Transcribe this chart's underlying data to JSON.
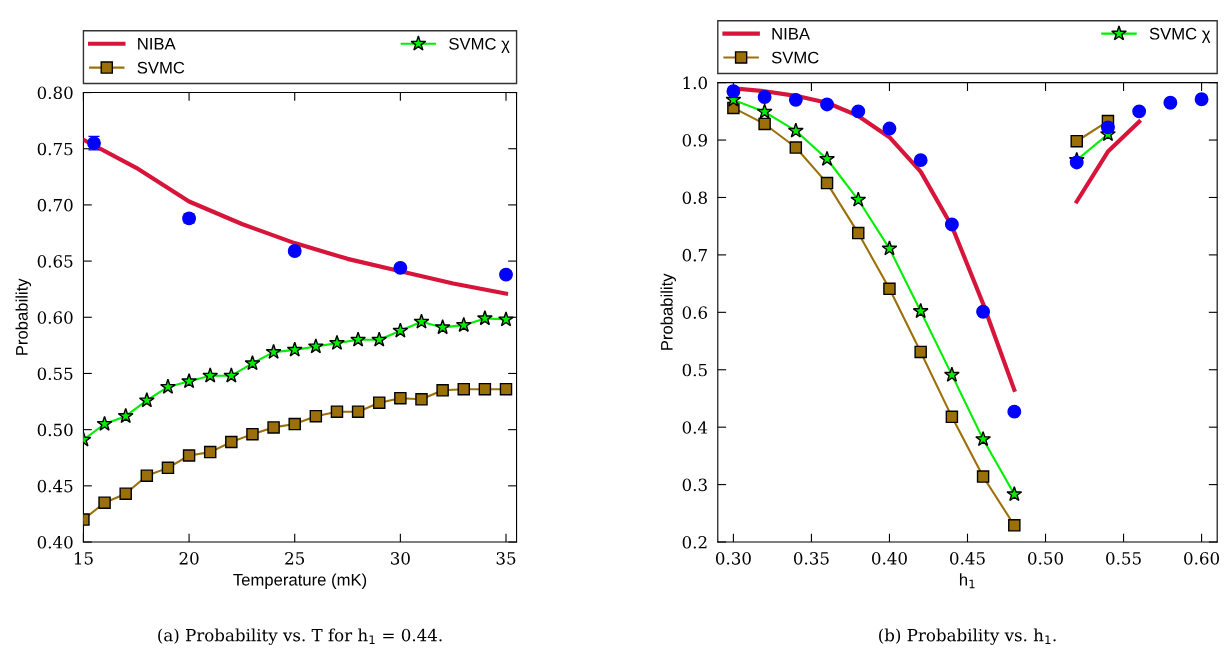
{
  "chart_data": [
    {
      "type": "line",
      "xlabel": "Temperature (mK)",
      "ylabel": "Probability",
      "legend": "top",
      "grid": false,
      "annotations": [
        "(a) Probability vs. T for h$_{1}$ = 0.44."
      ],
      "xlim": [
        15,
        35.5
      ],
      "xticks": [
        15,
        20,
        25,
        30,
        35
      ],
      "ylim": [
        0.4,
        0.8
      ],
      "yticks": [
        {
          "value": 0.4,
          "label": "0.40"
        },
        0.45,
        {
          "value": 0.5,
          "label": "0.50"
        },
        0.55,
        {
          "value": 0.6,
          "label": "0.60"
        },
        0.65,
        {
          "value": 0.7,
          "label": "0.70"
        },
        0.75,
        {
          "value": 0.8,
          "label": "0.80"
        }
      ],
      "series": [
        {
          "name": "NIBA",
          "type": "line",
          "marker": "none",
          "color": "#d7153a",
          "x": [
            15,
            17.5,
            20,
            22.5,
            25,
            27.5,
            30,
            32.5,
            35
          ],
          "values": [
            0.758,
            0.733,
            0.703,
            0.683,
            0.666,
            0.652,
            0.641,
            0.63,
            0.621
          ]
        },
        {
          "type": "scatter",
          "marker": "circle",
          "color": "#0000ff",
          "x": [
            15.5,
            20,
            25,
            30,
            35
          ],
          "values": [
            0.755,
            0.688,
            0.659,
            0.644,
            0.638
          ],
          "errors": [
            0.006,
            0.004,
            0.003,
            0.003,
            0.003
          ]
        },
        {
          "name": "SVMC",
          "type": "line",
          "marker": "square",
          "color": "#9c7009",
          "x": [
            15,
            16,
            17,
            18,
            19,
            20,
            21,
            22,
            23,
            24,
            25,
            26,
            27,
            28,
            29,
            30,
            31,
            32,
            33,
            34,
            35
          ],
          "values": [
            0.42,
            0.435,
            0.443,
            0.459,
            0.466,
            0.477,
            0.48,
            0.489,
            0.496,
            0.502,
            0.505,
            0.512,
            0.516,
            0.516,
            0.524,
            0.528,
            0.527,
            0.535,
            0.536,
            0.536,
            0.536
          ]
        },
        {
          "name": "SVMC χ",
          "type": "line",
          "marker": "star",
          "color": "#00ee00",
          "x": [
            15,
            16,
            17,
            18,
            19,
            20,
            21,
            22,
            23,
            24,
            25,
            26,
            27,
            28,
            29,
            30,
            31,
            32,
            33,
            34,
            35
          ],
          "values": [
            0.491,
            0.505,
            0.512,
            0.526,
            0.538,
            0.543,
            0.548,
            0.548,
            0.559,
            0.569,
            0.571,
            0.574,
            0.577,
            0.58,
            0.58,
            0.588,
            0.596,
            0.591,
            0.593,
            0.599,
            0.598
          ]
        }
      ]
    },
    {
      "type": "line",
      "xlabel": "h$_{1}$",
      "ylabel": "Probability",
      "legend": "top",
      "grid": false,
      "annotations": [
        "(b) Probability vs. h$_{1}$."
      ],
      "xlim": [
        0.29,
        0.61
      ],
      "xticks": [
        {
          "value": 0.3,
          "label": "0.30"
        },
        0.35,
        {
          "value": 0.4,
          "label": "0.40"
        },
        0.45,
        {
          "value": 0.5,
          "label": "0.50"
        },
        0.55,
        {
          "value": 0.6,
          "label": "0.60"
        }
      ],
      "ylim": [
        0.2,
        1.0
      ],
      "yticks": [
        0.2,
        0.3,
        0.4,
        0.5,
        0.6,
        0.7,
        0.8,
        0.9,
        {
          "value": 1.0,
          "label": "1.0"
        }
      ],
      "series": [
        {
          "name": "NIBA",
          "type": "line",
          "marker": "none",
          "color": "#d7153a",
          "x": [
            0.3,
            0.32,
            0.34,
            0.36,
            0.38,
            0.4,
            0.42,
            0.44,
            0.46,
            0.48,
            0.5,
            0.52,
            0.54,
            0.56
          ],
          "values": [
            0.99,
            0.985,
            0.977,
            0.965,
            0.942,
            0.905,
            0.845,
            0.75,
            0.615,
            0.465,
            null,
            0.793,
            0.88,
            0.932
          ]
        },
        {
          "type": "scatter",
          "marker": "circle",
          "color": "#0000ff",
          "x": [
            0.3,
            0.32,
            0.34,
            0.36,
            0.38,
            0.4,
            0.42,
            0.44,
            0.46,
            0.48,
            0.52,
            0.54,
            0.56,
            0.58,
            0.6
          ],
          "values": [
            0.985,
            0.975,
            0.97,
            0.962,
            0.95,
            0.92,
            0.865,
            0.753,
            0.601,
            0.427,
            0.861,
            0.922,
            0.95,
            0.965,
            0.971
          ]
        },
        {
          "name": "SVMC",
          "type": "line",
          "marker": "square",
          "color": "#9c7009",
          "x": [
            0.3,
            0.32,
            0.34,
            0.36,
            0.38,
            0.4,
            0.42,
            0.44,
            0.46,
            0.48,
            0.5,
            0.52,
            0.54
          ],
          "values": [
            0.956,
            0.928,
            0.887,
            0.825,
            0.738,
            0.641,
            0.531,
            0.418,
            0.314,
            0.229,
            null,
            0.898,
            0.933
          ]
        },
        {
          "name": "SVMC χ",
          "type": "line",
          "marker": "star",
          "color": "#00ee00",
          "x": [
            0.3,
            0.32,
            0.34,
            0.36,
            0.38,
            0.4,
            0.42,
            0.44,
            0.46,
            0.48,
            0.5,
            0.52,
            0.54
          ],
          "values": [
            0.97,
            0.949,
            0.916,
            0.867,
            0.796,
            0.711,
            0.602,
            0.491,
            0.379,
            0.283,
            null,
            0.865,
            0.91
          ]
        }
      ]
    }
  ]
}
